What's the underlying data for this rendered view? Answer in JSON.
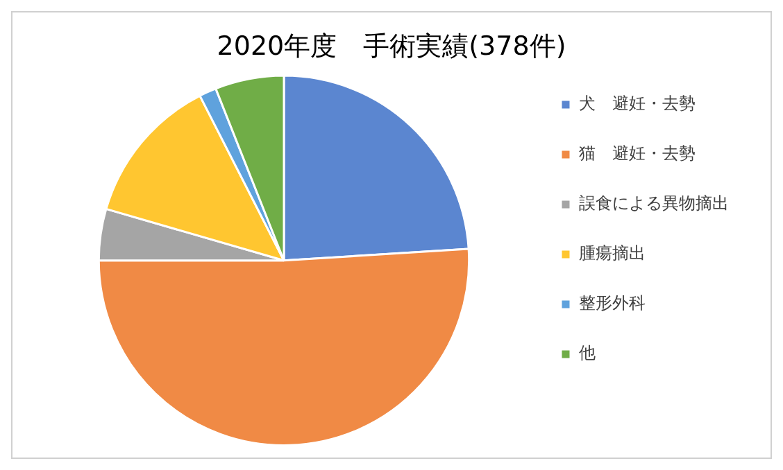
{
  "chart_data": {
    "type": "pie",
    "title": "2020年度　手術実績(378件)",
    "categories": [
      "犬　避妊・去勢",
      "猫　避妊・去勢",
      "誤食による異物摘出",
      "腫瘍摘出",
      "整形外科",
      "他"
    ],
    "values": [
      24,
      51,
      4.5,
      13,
      1.5,
      6
    ],
    "colors": [
      "#5b86d0",
      "#f08a45",
      "#a5a5a5",
      "#ffc630",
      "#5fa2dd",
      "#70ad47"
    ],
    "legend": "right"
  }
}
